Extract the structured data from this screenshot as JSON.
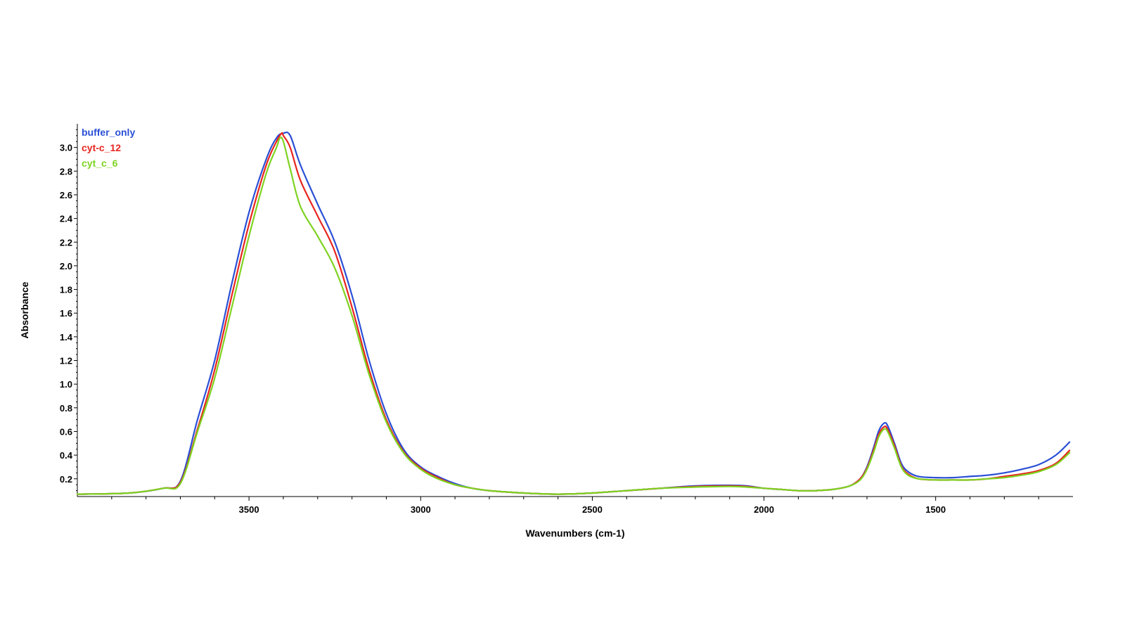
{
  "chart_data": {
    "type": "line",
    "title": "",
    "xlabel": "Wavenumbers (cm-1)",
    "ylabel": "Absorbance",
    "xlim": [
      4000,
      1100
    ],
    "ylim": [
      0.05,
      3.2
    ],
    "x_reversed": true,
    "grid": false,
    "legend_position": "top-left",
    "x_ticks": [
      3500,
      3000,
      2500,
      2000,
      1500
    ],
    "y_ticks": [
      0.2,
      0.4,
      0.6,
      0.8,
      1.0,
      1.2,
      1.4,
      1.6,
      1.8,
      2.0,
      2.2,
      2.4,
      2.6,
      2.8,
      3.0
    ],
    "series": [
      {
        "name": "buffer_only",
        "color": "#2a4fd6",
        "x": [
          4000,
          3850,
          3750,
          3700,
          3650,
          3600,
          3550,
          3500,
          3450,
          3420,
          3400,
          3380,
          3350,
          3300,
          3250,
          3200,
          3150,
          3100,
          3050,
          3000,
          2950,
          2900,
          2850,
          2800,
          2700,
          2600,
          2500,
          2400,
          2300,
          2200,
          2100,
          2050,
          2000,
          1950,
          1900,
          1850,
          1800,
          1750,
          1720,
          1700,
          1680,
          1665,
          1650,
          1640,
          1620,
          1600,
          1580,
          1550,
          1500,
          1450,
          1400,
          1350,
          1300,
          1250,
          1200,
          1150,
          1110
        ],
        "y": [
          0.07,
          0.08,
          0.12,
          0.18,
          0.7,
          1.2,
          1.85,
          2.45,
          2.9,
          3.08,
          3.12,
          3.1,
          2.85,
          2.52,
          2.2,
          1.75,
          1.2,
          0.75,
          0.45,
          0.3,
          0.22,
          0.16,
          0.12,
          0.1,
          0.08,
          0.07,
          0.08,
          0.1,
          0.12,
          0.14,
          0.145,
          0.14,
          0.12,
          0.11,
          0.1,
          0.1,
          0.11,
          0.14,
          0.2,
          0.3,
          0.47,
          0.61,
          0.67,
          0.65,
          0.5,
          0.33,
          0.26,
          0.22,
          0.21,
          0.21,
          0.22,
          0.23,
          0.25,
          0.28,
          0.32,
          0.4,
          0.51
        ]
      },
      {
        "name": "cyt-c_12",
        "color": "#e8251f",
        "x": [
          4000,
          3850,
          3750,
          3700,
          3650,
          3600,
          3550,
          3500,
          3450,
          3420,
          3405,
          3400,
          3380,
          3350,
          3300,
          3250,
          3200,
          3150,
          3100,
          3050,
          3000,
          2950,
          2900,
          2850,
          2800,
          2700,
          2600,
          2500,
          2400,
          2300,
          2200,
          2100,
          2050,
          2000,
          1950,
          1900,
          1850,
          1800,
          1750,
          1720,
          1700,
          1680,
          1665,
          1650,
          1640,
          1620,
          1600,
          1580,
          1550,
          1500,
          1450,
          1400,
          1350,
          1300,
          1250,
          1200,
          1150,
          1110
        ],
        "y": [
          0.07,
          0.08,
          0.12,
          0.17,
          0.62,
          1.12,
          1.75,
          2.35,
          2.85,
          3.05,
          3.12,
          3.1,
          3.0,
          2.72,
          2.42,
          2.12,
          1.65,
          1.12,
          0.7,
          0.43,
          0.29,
          0.21,
          0.15,
          0.12,
          0.1,
          0.08,
          0.07,
          0.08,
          0.1,
          0.12,
          0.135,
          0.14,
          0.135,
          0.12,
          0.11,
          0.1,
          0.1,
          0.11,
          0.14,
          0.2,
          0.29,
          0.45,
          0.58,
          0.64,
          0.62,
          0.48,
          0.31,
          0.24,
          0.2,
          0.19,
          0.19,
          0.19,
          0.2,
          0.22,
          0.24,
          0.27,
          0.33,
          0.44
        ]
      },
      {
        "name": "cyt_c_6",
        "color": "#7ed321",
        "x": [
          4000,
          3850,
          3750,
          3700,
          3650,
          3600,
          3550,
          3500,
          3450,
          3420,
          3410,
          3400,
          3380,
          3350,
          3300,
          3250,
          3200,
          3150,
          3100,
          3050,
          3000,
          2950,
          2900,
          2850,
          2800,
          2700,
          2600,
          2500,
          2400,
          2300,
          2200,
          2100,
          2050,
          2000,
          1950,
          1900,
          1850,
          1800,
          1750,
          1720,
          1700,
          1680,
          1665,
          1650,
          1640,
          1620,
          1600,
          1580,
          1550,
          1500,
          1450,
          1400,
          1350,
          1300,
          1250,
          1200,
          1150,
          1110
        ],
        "y": [
          0.07,
          0.08,
          0.12,
          0.16,
          0.6,
          1.05,
          1.65,
          2.25,
          2.78,
          3.0,
          3.08,
          3.05,
          2.82,
          2.5,
          2.25,
          1.98,
          1.58,
          1.08,
          0.68,
          0.42,
          0.28,
          0.2,
          0.15,
          0.12,
          0.1,
          0.08,
          0.07,
          0.08,
          0.1,
          0.12,
          0.13,
          0.135,
          0.13,
          0.12,
          0.11,
          0.1,
          0.1,
          0.11,
          0.14,
          0.19,
          0.28,
          0.43,
          0.56,
          0.62,
          0.6,
          0.46,
          0.3,
          0.23,
          0.2,
          0.19,
          0.19,
          0.19,
          0.2,
          0.21,
          0.23,
          0.26,
          0.32,
          0.42
        ]
      }
    ]
  }
}
